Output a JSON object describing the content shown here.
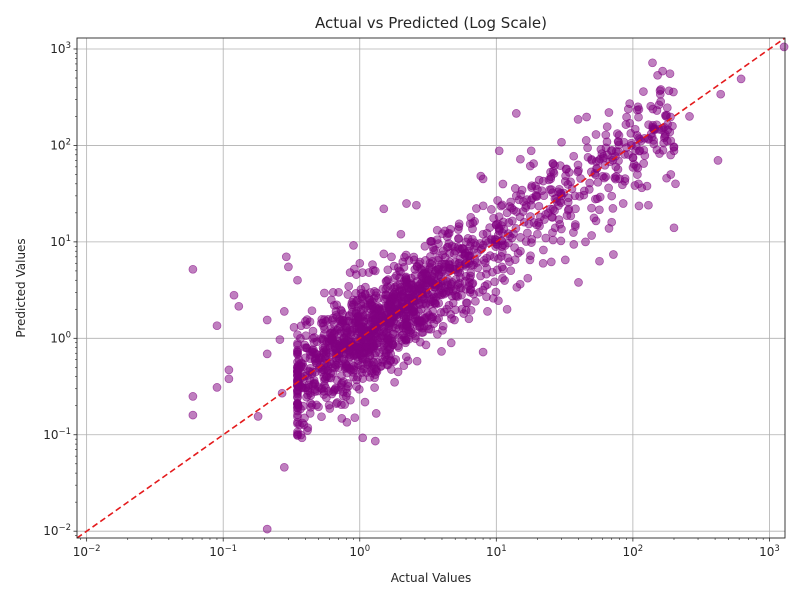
{
  "chart_data": {
    "type": "scatter",
    "title": "Actual vs Predicted (Log Scale)",
    "xlabel": "Actual Values",
    "ylabel": "Predicted Values",
    "xscale": "log",
    "yscale": "log",
    "xlim": [
      0.0085,
      1300
    ],
    "ylim": [
      0.0085,
      1300
    ],
    "x_ticks": [
      {
        "base": "10",
        "exp": "−2",
        "value": 0.01
      },
      {
        "base": "10",
        "exp": "−1",
        "value": 0.1
      },
      {
        "base": "10",
        "exp": "0",
        "value": 1
      },
      {
        "base": "10",
        "exp": "1",
        "value": 10
      },
      {
        "base": "10",
        "exp": "2",
        "value": 100
      },
      {
        "base": "10",
        "exp": "3",
        "value": 1000
      }
    ],
    "y_ticks": [
      {
        "base": "10",
        "exp": "−2",
        "value": 0.01
      },
      {
        "base": "10",
        "exp": "−1",
        "value": 0.1
      },
      {
        "base": "10",
        "exp": "0",
        "value": 1
      },
      {
        "base": "10",
        "exp": "1",
        "value": 10
      },
      {
        "base": "10",
        "exp": "2",
        "value": 100
      },
      {
        "base": "10",
        "exp": "3",
        "value": 1000
      }
    ],
    "grid": true,
    "marker_color": "#800080",
    "marker_alpha": 0.5,
    "reference_line": {
      "style": "dashed",
      "color": "#e41a1c",
      "equation": "y = x"
    },
    "points": [
      [
        0.06,
        5.2
      ],
      [
        0.06,
        0.25
      ],
      [
        0.06,
        0.16
      ],
      [
        0.09,
        1.35
      ],
      [
        0.09,
        0.31
      ],
      [
        0.11,
        0.47
      ],
      [
        0.11,
        0.38
      ],
      [
        0.12,
        2.8
      ],
      [
        0.13,
        2.15
      ],
      [
        0.18,
        0.155
      ],
      [
        0.21,
        1.55
      ],
      [
        0.21,
        0.69
      ],
      [
        0.21,
        0.0105
      ],
      [
        0.26,
        0.97
      ],
      [
        0.27,
        0.27
      ],
      [
        0.28,
        0.046
      ],
      [
        0.28,
        1.9
      ],
      [
        0.29,
        7.0
      ],
      [
        0.3,
        5.5
      ],
      [
        0.3,
        0.0083
      ],
      [
        0.33,
        1.3
      ],
      [
        0.35,
        4.0
      ],
      [
        0.4,
        1.5
      ],
      [
        0.47,
        0.28
      ],
      [
        0.53,
        0.3
      ],
      [
        0.9,
        9.2
      ],
      [
        1.05,
        0.093
      ],
      [
        1.3,
        0.086
      ],
      [
        1.3,
        0.42
      ],
      [
        1.5,
        22.0
      ],
      [
        1.8,
        0.35
      ],
      [
        2.1,
        0.52
      ],
      [
        2.2,
        25.0
      ],
      [
        2.6,
        24.0
      ],
      [
        8.0,
        0.72
      ],
      [
        10.5,
        88.0
      ],
      [
        14.0,
        215.0
      ],
      [
        15.0,
        72.0
      ],
      [
        18.0,
        88.0
      ],
      [
        30.0,
        108.0
      ],
      [
        40.0,
        3.8
      ],
      [
        57.0,
        6.3
      ],
      [
        72.0,
        7.4
      ],
      [
        130.0,
        24.0
      ],
      [
        135.0,
        255.0
      ],
      [
        150.0,
        230.0
      ],
      [
        160.0,
        380.0
      ],
      [
        165.0,
        590.0
      ],
      [
        200.0,
        14.0
      ],
      [
        205.0,
        40.0
      ],
      [
        260.0,
        200.0
      ],
      [
        420.0,
        70.0
      ],
      [
        440.0,
        340.0
      ],
      [
        620.0,
        490.0
      ],
      [
        1280.0,
        1050.0
      ],
      [
        0.35,
        0.5
      ],
      [
        0.4,
        0.8
      ],
      [
        0.45,
        0.45
      ],
      [
        0.5,
        0.6
      ],
      [
        0.55,
        1.1
      ],
      [
        0.6,
        0.9
      ],
      [
        0.65,
        2.2
      ],
      [
        0.7,
        3.0
      ],
      [
        0.7,
        0.55
      ],
      [
        0.75,
        1.8
      ],
      [
        0.8,
        1.2
      ],
      [
        0.85,
        4.8
      ],
      [
        0.9,
        2.5
      ],
      [
        0.95,
        0.7
      ],
      [
        1.0,
        6.0
      ],
      [
        1.0,
        1.5
      ],
      [
        1.1,
        3.4
      ],
      [
        1.2,
        2.0
      ],
      [
        1.2,
        0.8
      ],
      [
        1.3,
        5.0
      ],
      [
        1.4,
        1.2
      ],
      [
        1.5,
        7.5
      ],
      [
        1.6,
        2.8
      ],
      [
        1.7,
        1.0
      ],
      [
        1.8,
        4.2
      ],
      [
        2.0,
        2.0
      ],
      [
        2.0,
        12.0
      ],
      [
        2.2,
        1.4
      ],
      [
        2.4,
        3.2
      ],
      [
        2.5,
        6.5
      ],
      [
        2.7,
        2.3
      ],
      [
        3.0,
        9.0
      ],
      [
        3.0,
        1.6
      ],
      [
        3.2,
        4.0
      ],
      [
        3.5,
        2.7
      ],
      [
        3.8,
        6.8
      ],
      [
        4.0,
        3.5
      ],
      [
        4.2,
        13.0
      ],
      [
        4.5,
        2.2
      ],
      [
        5.0,
        5.2
      ],
      [
        5.0,
        8.0
      ],
      [
        5.5,
        3.3
      ],
      [
        6.0,
        10.0
      ],
      [
        6.0,
        4.4
      ],
      [
        6.5,
        18.0
      ],
      [
        7.0,
        6.5
      ],
      [
        7.5,
        3.0
      ],
      [
        8.0,
        12.0
      ],
      [
        8.0,
        45.0
      ],
      [
        9.0,
        7.2
      ],
      [
        9.5,
        2.6
      ],
      [
        10.0,
        15.0
      ],
      [
        10.0,
        9.5
      ],
      [
        11.0,
        5.5
      ],
      [
        12.0,
        20.0
      ],
      [
        12.0,
        2.0
      ],
      [
        13.0,
        11.0
      ],
      [
        14.0,
        30.0
      ],
      [
        15.0,
        8.0
      ],
      [
        16.0,
        16.0
      ],
      [
        17.0,
        4.2
      ],
      [
        18.0,
        24.0
      ],
      [
        20.0,
        12.0
      ],
      [
        20.0,
        35.0
      ],
      [
        22.0,
        6.0
      ],
      [
        24.0,
        20.0
      ],
      [
        25.0,
        45.0
      ],
      [
        27.0,
        14.0
      ],
      [
        30.0,
        30.0
      ],
      [
        32.0,
        6.5
      ],
      [
        35.0,
        42.0
      ],
      [
        38.0,
        22.0
      ],
      [
        40.0,
        55.0
      ],
      [
        45.0,
        10.0
      ],
      [
        48.0,
        35.0
      ],
      [
        50.0,
        70.0
      ],
      [
        55.0,
        28.0
      ],
      [
        60.0,
        48.0
      ],
      [
        65.0,
        80.0
      ],
      [
        70.0,
        16.0
      ],
      [
        75.0,
        60.0
      ],
      [
        80.0,
        45.0
      ],
      [
        90.0,
        95.0
      ],
      [
        95.0,
        170.0
      ],
      [
        100.0,
        75.0
      ],
      [
        110.0,
        120.0
      ],
      [
        120.0,
        65.0
      ],
      [
        140.0,
        150.0
      ],
      [
        150.0,
        90.0
      ],
      [
        170.0,
        120.0
      ],
      [
        175.0,
        200.0
      ],
      [
        180.0,
        145.0
      ],
      [
        200.0,
        88.0
      ],
      [
        110.0,
        40.0
      ],
      [
        85.0,
        25.0
      ]
    ],
    "cloud_note": "dense band of points along y = x from about 0.3 to 200",
    "cloud": {
      "count": 1500,
      "x_range": [
        0.35,
        200
      ],
      "log_sigma": 0.26
    }
  }
}
